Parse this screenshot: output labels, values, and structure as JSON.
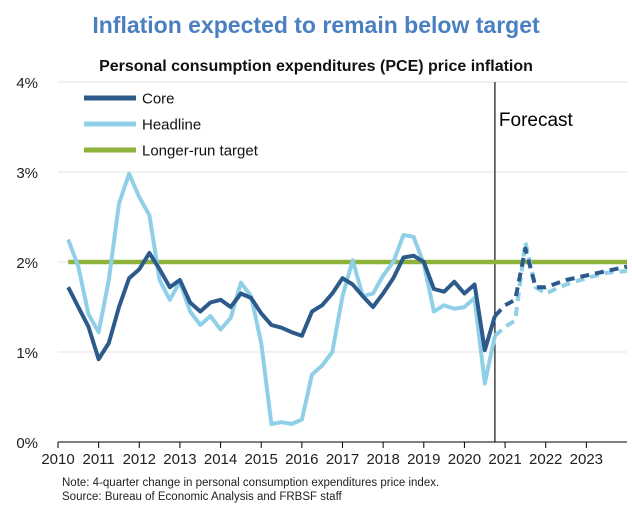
{
  "chart_data": {
    "type": "line",
    "title": "Inflation expected to remain below target",
    "subtitle": "Personal consumption expenditures (PCE) price inflation",
    "xlabel": "",
    "ylabel": "",
    "xlim": [
      2010,
      2024
    ],
    "ylim": [
      0,
      4
    ],
    "x_ticks": [
      "2010",
      "2011",
      "2012",
      "2013",
      "2014",
      "2015",
      "2016",
      "2017",
      "2018",
      "2019",
      "2020",
      "2021",
      "2022",
      "2023"
    ],
    "y_ticks": [
      "0%",
      "1%",
      "2%",
      "3%",
      "4%"
    ],
    "grid": true,
    "legend_position": "top-left",
    "annotation": "Forecast",
    "forecast_start": 2020.75,
    "colors": {
      "title": "#4a7fc1",
      "core": "#2c5a8a",
      "headline": "#8fd0e8",
      "target": "#8db33a"
    },
    "series": [
      {
        "name": "Core",
        "style": "solid",
        "x": [
          2010.25,
          2010.5,
          2010.75,
          2011.0,
          2011.25,
          2011.5,
          2011.75,
          2012.0,
          2012.25,
          2012.5,
          2012.75,
          2013.0,
          2013.25,
          2013.5,
          2013.75,
          2014.0,
          2014.25,
          2014.5,
          2014.75,
          2015.0,
          2015.25,
          2015.5,
          2015.75,
          2016.0,
          2016.25,
          2016.5,
          2016.75,
          2017.0,
          2017.25,
          2017.5,
          2017.75,
          2018.0,
          2018.25,
          2018.5,
          2018.75,
          2019.0,
          2019.25,
          2019.5,
          2019.75,
          2020.0,
          2020.25,
          2020.5,
          2020.75
        ],
        "y": [
          1.72,
          1.5,
          1.28,
          0.92,
          1.1,
          1.5,
          1.82,
          1.92,
          2.1,
          1.92,
          1.72,
          1.8,
          1.55,
          1.45,
          1.55,
          1.58,
          1.5,
          1.65,
          1.6,
          1.43,
          1.3,
          1.27,
          1.22,
          1.18,
          1.45,
          1.52,
          1.65,
          1.82,
          1.75,
          1.62,
          1.5,
          1.65,
          1.82,
          2.05,
          2.07,
          2.0,
          1.7,
          1.67,
          1.78,
          1.65,
          1.75,
          1.02,
          1.4
        ]
      },
      {
        "name": "Headline",
        "style": "solid",
        "x": [
          2010.25,
          2010.5,
          2010.75,
          2011.0,
          2011.25,
          2011.5,
          2011.75,
          2012.0,
          2012.25,
          2012.5,
          2012.75,
          2013.0,
          2013.25,
          2013.5,
          2013.75,
          2014.0,
          2014.25,
          2014.5,
          2014.75,
          2015.0,
          2015.25,
          2015.5,
          2015.75,
          2016.0,
          2016.25,
          2016.5,
          2016.75,
          2017.0,
          2017.25,
          2017.5,
          2017.75,
          2018.0,
          2018.25,
          2018.5,
          2018.75,
          2019.0,
          2019.25,
          2019.5,
          2019.75,
          2020.0,
          2020.25,
          2020.5,
          2020.75
        ],
        "y": [
          2.25,
          1.95,
          1.42,
          1.22,
          1.8,
          2.65,
          2.98,
          2.72,
          2.52,
          1.8,
          1.58,
          1.78,
          1.45,
          1.3,
          1.4,
          1.25,
          1.38,
          1.77,
          1.62,
          1.1,
          0.2,
          0.22,
          0.2,
          0.25,
          0.75,
          0.85,
          1.0,
          1.62,
          2.02,
          1.62,
          1.65,
          1.85,
          2.0,
          2.3,
          2.28,
          1.98,
          1.45,
          1.52,
          1.48,
          1.5,
          1.6,
          0.65,
          1.18
        ]
      },
      {
        "name": "Core forecast",
        "style": "dashed",
        "x": [
          2020.75,
          2021.0,
          2021.25,
          2021.5,
          2021.75,
          2022.0,
          2022.5,
          2023.0,
          2023.5,
          2024.0
        ],
        "y": [
          1.4,
          1.52,
          1.58,
          2.15,
          1.72,
          1.72,
          1.8,
          1.85,
          1.9,
          1.95
        ]
      },
      {
        "name": "Headline forecast",
        "style": "dashed",
        "x": [
          2020.75,
          2021.0,
          2021.25,
          2021.5,
          2021.75,
          2022.0,
          2022.5,
          2023.0,
          2023.5,
          2024.0
        ],
        "y": [
          1.18,
          1.28,
          1.35,
          2.22,
          1.72,
          1.65,
          1.75,
          1.82,
          1.88,
          1.9
        ]
      },
      {
        "name": "Longer-run target",
        "style": "solid",
        "x": [
          2010.25,
          2024.0
        ],
        "y": [
          2.0,
          2.0
        ]
      }
    ],
    "legend": [
      {
        "label": "Core",
        "key": "core"
      },
      {
        "label": "Headline",
        "key": "headline"
      },
      {
        "label": "Longer-run target",
        "key": "target"
      }
    ],
    "note": "Note: 4-quarter change in personal consumption expenditures price index.",
    "source": "Source: Bureau of Economic Analysis and FRBSF staff"
  }
}
